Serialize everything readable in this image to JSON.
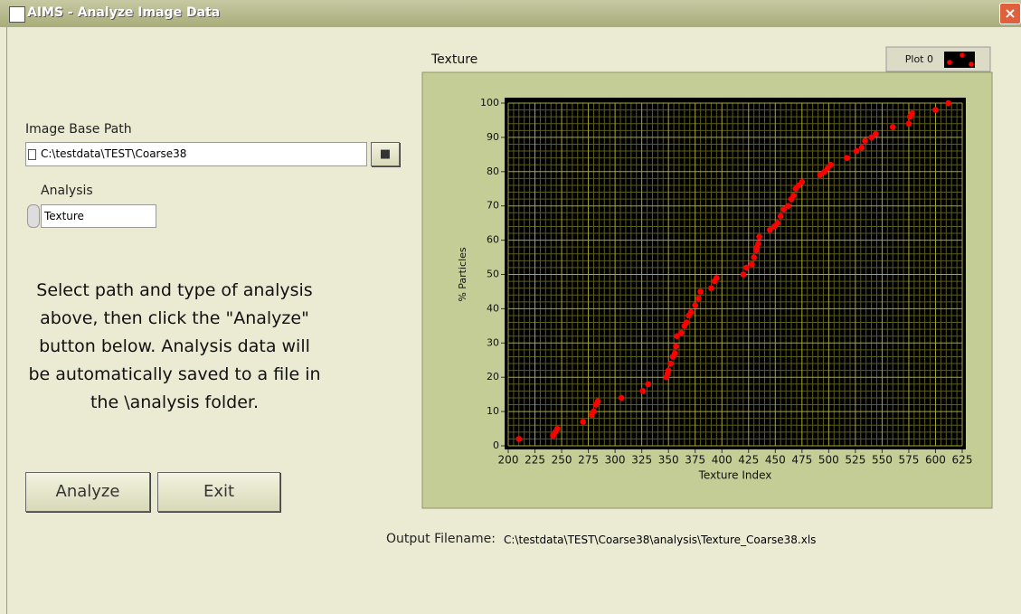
{
  "window": {
    "title": "AIMS - Analyze Image Data"
  },
  "form": {
    "path_label": "Image Base Path",
    "path_value": "C:\\testdata\\TEST\\Coarse38",
    "analysis_label": "Analysis",
    "analysis_value": "Texture",
    "instructions": [
      "Select path and type of analysis",
      "above, then click the \"Analyze\"",
      "button below.  Analysis data will",
      "be automatically saved to a file in",
      "the \\analysis folder."
    ],
    "buttons": [
      "Analyze",
      "Exit"
    ],
    "output_label": "Output Filename:",
    "output_value": "C:\\testdata\\TEST\\Coarse38\\analysis\\Texture_Coarse38.xls"
  },
  "chart_data": {
    "type": "scatter",
    "title": "Texture",
    "x_label": "Texture Index",
    "y_label": "% Particles",
    "legend": "top-right",
    "grid": true,
    "series": [
      {
        "name": "Plot 0",
        "color": "#ff0000",
        "x": [
          210,
          242,
          244,
          246,
          270,
          278,
          280,
          282,
          284,
          306,
          326,
          331,
          348,
          349,
          350,
          352,
          354,
          356,
          357,
          358,
          362,
          365,
          367,
          369,
          371,
          375,
          378,
          380,
          390,
          393,
          395,
          420,
          423,
          428,
          430,
          432,
          433,
          434,
          435,
          445,
          449,
          452,
          455,
          458,
          462,
          465,
          467,
          469,
          472,
          475,
          492,
          496,
          499,
          502,
          517,
          526,
          531,
          534,
          540,
          544,
          560,
          575,
          576,
          578,
          600,
          612
        ],
        "values": [
          2,
          3,
          4,
          5,
          7,
          9,
          10,
          12,
          13,
          14,
          16,
          18,
          20,
          21,
          22,
          24,
          26,
          27,
          29,
          32,
          33,
          35,
          36,
          38,
          39,
          41,
          43,
          45,
          46,
          48,
          49,
          50,
          52,
          53,
          55,
          57,
          58,
          59,
          61,
          63,
          64,
          65,
          67,
          69,
          70,
          72,
          73,
          75,
          76,
          77,
          79,
          80,
          81,
          82,
          84,
          86,
          87,
          89,
          90,
          91,
          93,
          94,
          96,
          97,
          98,
          100
        ]
      }
    ],
    "xlim": [
      200,
      625
    ],
    "xticks": [
      200,
      225,
      250,
      275,
      300,
      325,
      350,
      375,
      400,
      425,
      450,
      475,
      500,
      525,
      550,
      575,
      600,
      625
    ],
    "ylim": [
      0,
      100
    ],
    "yticks": [
      0,
      10,
      20,
      30,
      40,
      50,
      60,
      70,
      80,
      90,
      100
    ]
  }
}
